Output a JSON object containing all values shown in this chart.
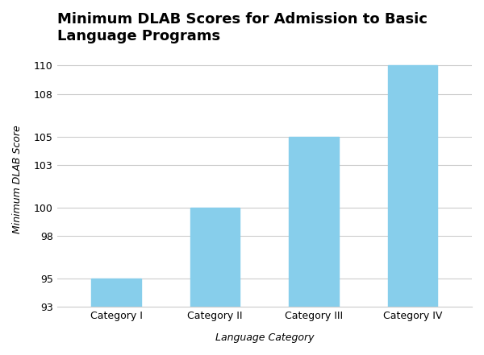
{
  "title": "Minimum DLAB Scores for Admission to Basic\nLanguage Programs",
  "xlabel": "Language Category",
  "ylabel": "Minimum DLAB Score",
  "categories": [
    "Category I",
    "Category II",
    "Category III",
    "Category IV"
  ],
  "values": [
    95,
    100,
    105,
    110
  ],
  "bar_color": "#87CEEB",
  "ymin": 93,
  "ymax": 111,
  "yticks": [
    93,
    95,
    98,
    100,
    103,
    105,
    108,
    110
  ],
  "background_color": "#ffffff",
  "title_fontsize": 13,
  "axis_label_fontsize": 9,
  "tick_fontsize": 9,
  "bar_width": 0.5
}
